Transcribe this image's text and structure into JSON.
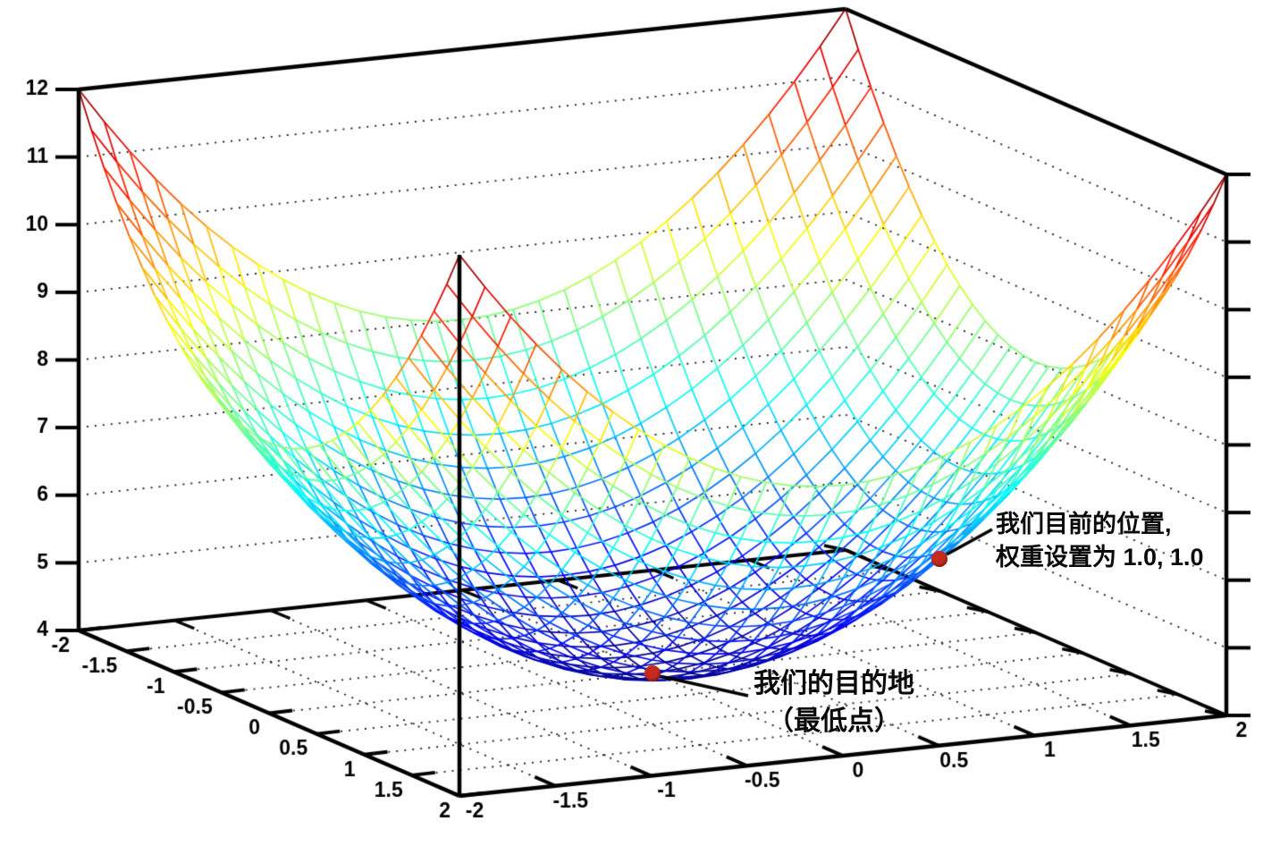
{
  "chart_data": {
    "type": "surface",
    "title": "",
    "xlabel": "",
    "ylabel": "",
    "zlabel": "",
    "surface": {
      "formula": "z = x^2 + y^2 + 4",
      "x_range": [
        -2,
        2
      ],
      "y_range": [
        -2,
        2
      ],
      "z_range": [
        4,
        12
      ],
      "grid_intervals": 30,
      "colormap": "jet",
      "style": "wireframe"
    },
    "x_ticks": [
      -2,
      -1.5,
      -1,
      -0.5,
      0,
      0.5,
      1,
      1.5,
      2
    ],
    "y_ticks": [
      -2,
      -1.5,
      -1,
      -0.5,
      0,
      0.5,
      1,
      1.5,
      2
    ],
    "z_ticks": [
      4,
      5,
      6,
      7,
      8,
      9,
      10,
      11,
      12
    ],
    "grid": "dotted walls and floor",
    "annotations": [
      {
        "id": "current-position",
        "point": {
          "x": 1.0,
          "y": 1.0,
          "z": 6.0
        },
        "lines": [
          "我们目前的位置,",
          "权重设置为 1.0, 1.0"
        ],
        "marker_color": "#c62a1a"
      },
      {
        "id": "goal",
        "point": {
          "x": 0.0,
          "y": 0.0,
          "z": 4.0
        },
        "lines": [
          "我们的目的地",
          "（最低点）"
        ],
        "marker_color": "#c62a1a"
      }
    ],
    "colors": {
      "axis": "#000000",
      "grid_dots": "#1b1b1b",
      "background": "#ffffff",
      "annotation_text": "#0a0a0a"
    }
  }
}
